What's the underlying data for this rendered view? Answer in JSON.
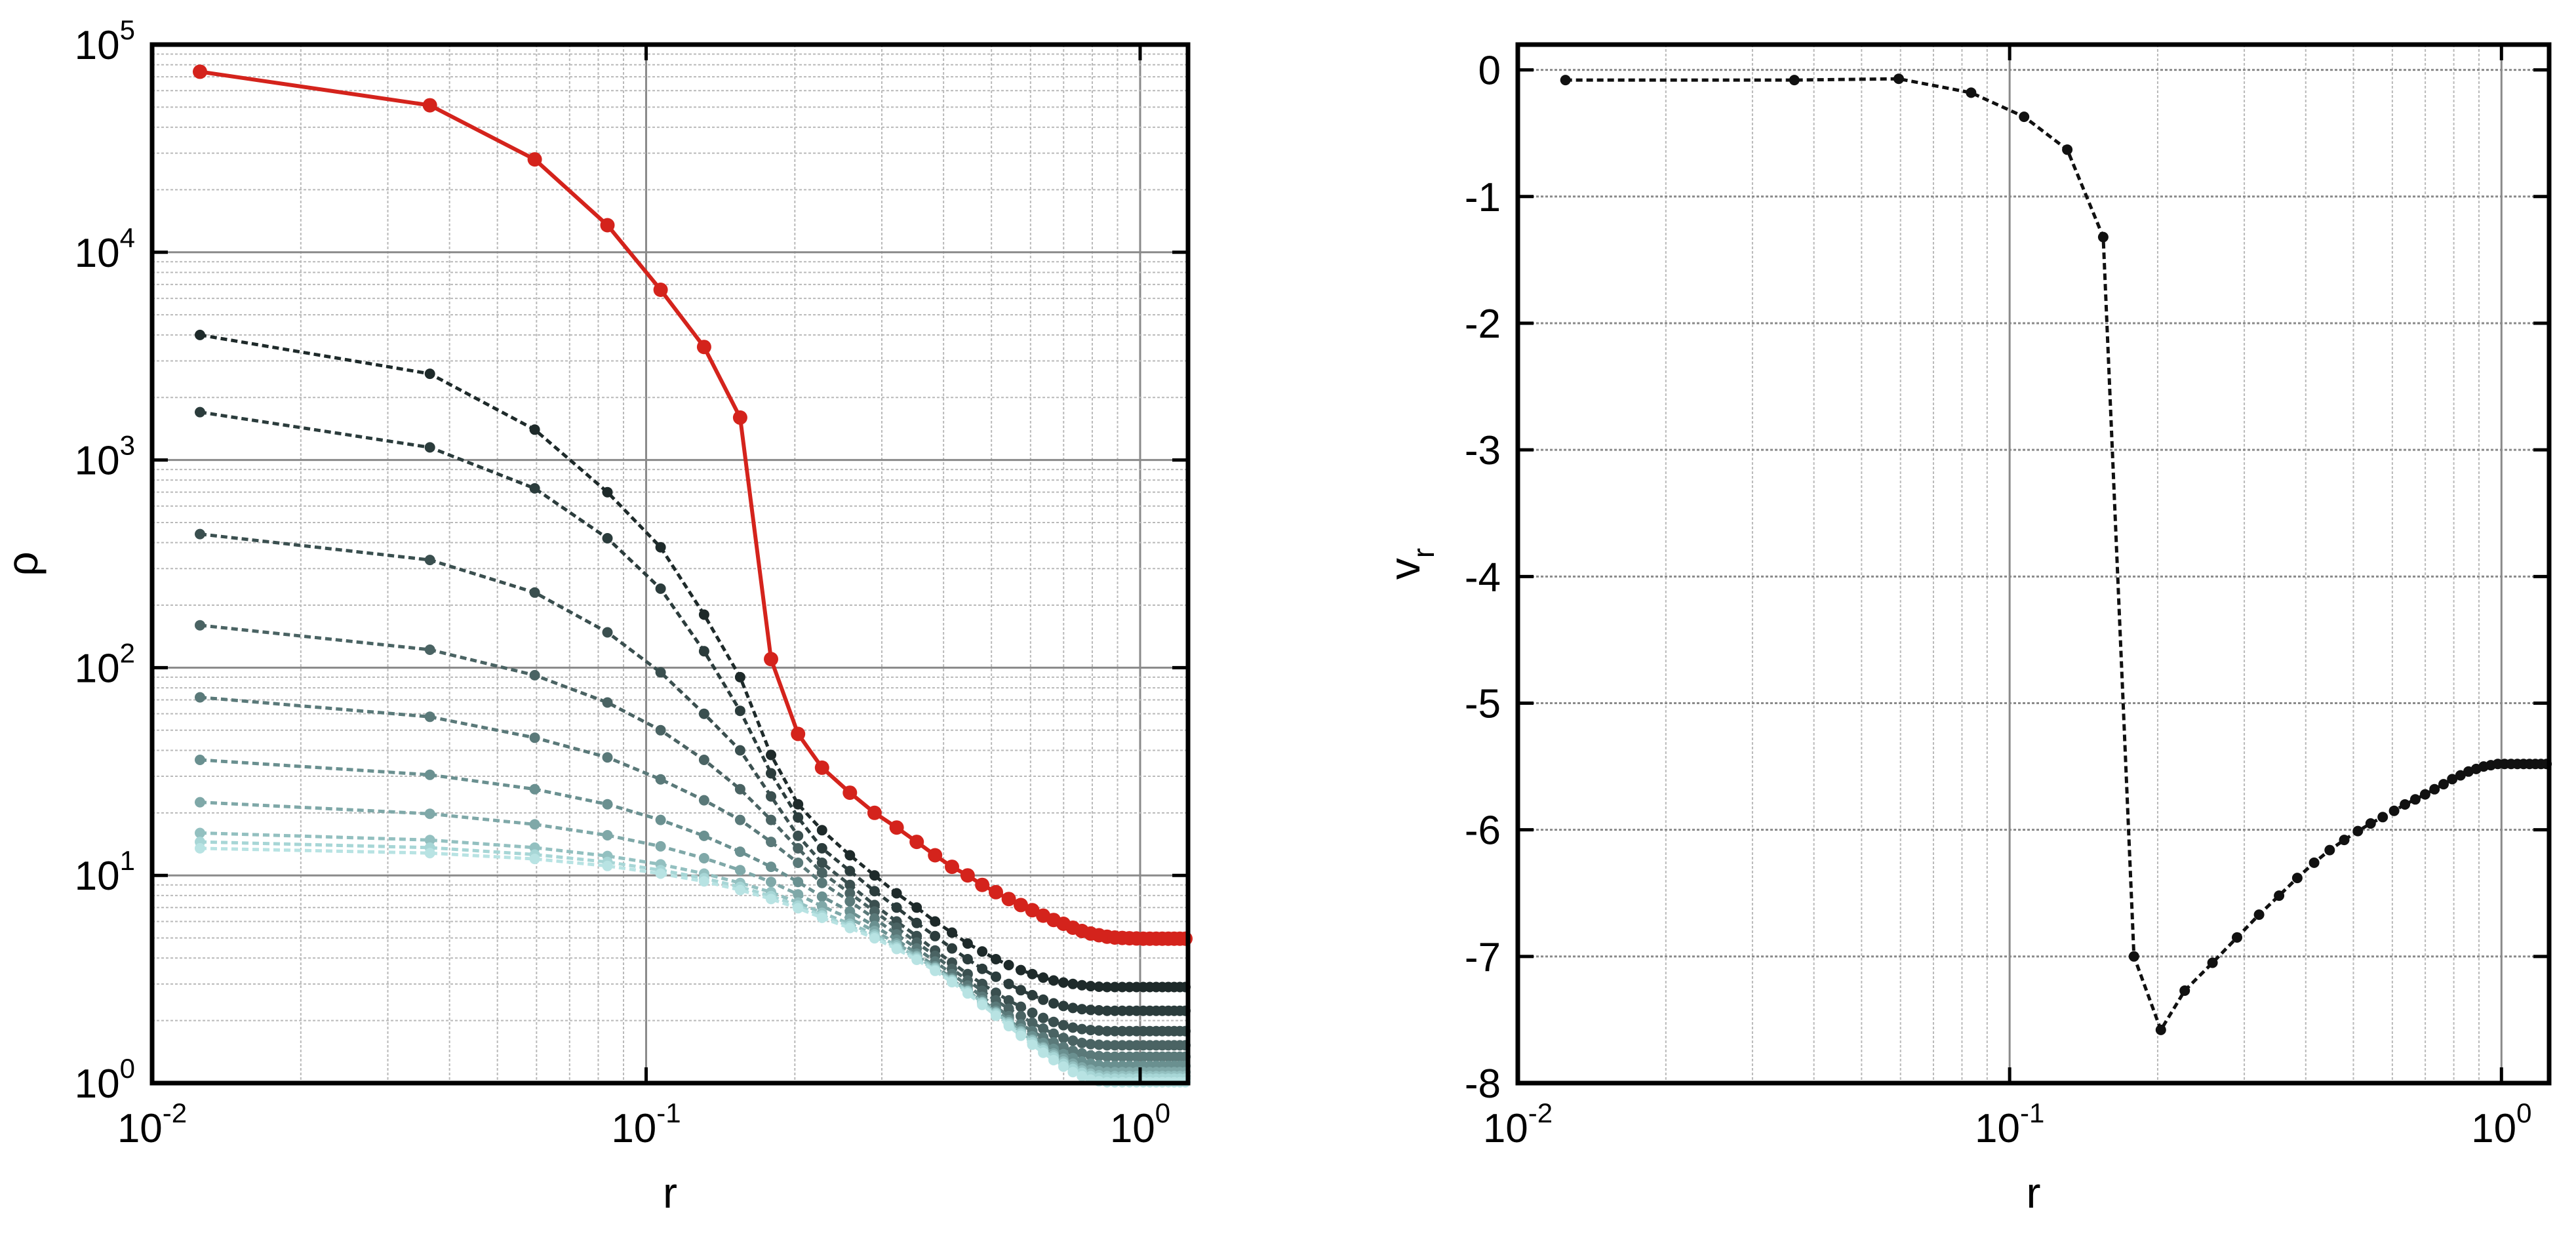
{
  "chart_data": [
    {
      "type": "line",
      "xlabel": "r",
      "ylabel": "ρ",
      "xscale": "log",
      "yscale": "log",
      "xlim": [
        0.01,
        1.25
      ],
      "ylim": [
        1,
        100000
      ],
      "grid": true,
      "xticks": [
        {
          "value": 0.01,
          "base": "10",
          "exp": "-2"
        },
        {
          "value": 0.1,
          "base": "10",
          "exp": "-1"
        },
        {
          "value": 1,
          "base": "10",
          "exp": "0"
        }
      ],
      "yticks": [
        {
          "value": 1,
          "base": "10",
          "exp": "0"
        },
        {
          "value": 10,
          "base": "10",
          "exp": "1"
        },
        {
          "value": 100,
          "base": "10",
          "exp": "2"
        },
        {
          "value": 1000,
          "base": "10",
          "exp": "3"
        },
        {
          "value": 10000,
          "base": "10",
          "exp": "4"
        },
        {
          "value": 100000,
          "base": "10",
          "exp": "5"
        }
      ],
      "highlight_color": "#d4231c",
      "r_inner": [
        0.0125,
        0.0365,
        0.0595,
        0.0835,
        0.107,
        0.131,
        0.155,
        0.179,
        0.203,
        0.227
      ],
      "series": [
        {
          "color": "#d4231c",
          "style": "solid",
          "values": [
            74000,
            51000,
            28000,
            13500,
            6600,
            3500,
            1600,
            110,
            48,
            33,
            25,
            20,
            17,
            14.5,
            12.5,
            11,
            10,
            9,
            8.3,
            7.7,
            7.2,
            6.8,
            6.4,
            6.1,
            5.85,
            5.6,
            5.4,
            5.25,
            5.15,
            5.07,
            5.02,
            5.0,
            4.98,
            4.97,
            4.96,
            4.96,
            4.96,
            4.96,
            4.96,
            4.96,
            4.96,
            4.96
          ]
        },
        {
          "color": "#1e2a2a",
          "style": "dotted",
          "values": [
            4000,
            2600,
            1400,
            700,
            380,
            180,
            90,
            38,
            22,
            16.5,
            12.5,
            10,
            8.2,
            7,
            6,
            5.3,
            4.7,
            4.3,
            3.95,
            3.7,
            3.5,
            3.35,
            3.22,
            3.12,
            3.05,
            3.0,
            2.96,
            2.93,
            2.91,
            2.9,
            2.9,
            2.9,
            2.9,
            2.9,
            2.9,
            2.9,
            2.9,
            2.9,
            2.9,
            2.9,
            2.9,
            2.9
          ]
        },
        {
          "color": "#2b3c3c",
          "style": "dotted",
          "values": [
            1700,
            1150,
            730,
            420,
            240,
            120,
            62,
            31,
            19,
            13.5,
            10.5,
            8.4,
            7,
            5.9,
            5.1,
            4.45,
            3.95,
            3.55,
            3.25,
            3.0,
            2.8,
            2.65,
            2.52,
            2.42,
            2.35,
            2.3,
            2.27,
            2.25,
            2.24,
            2.23,
            2.23,
            2.23,
            2.23,
            2.23,
            2.23,
            2.23,
            2.23,
            2.23,
            2.23,
            2.23,
            2.23,
            2.23
          ]
        },
        {
          "color": "#3a4f4f",
          "style": "dotted",
          "values": [
            440,
            330,
            230,
            148,
            95,
            60,
            40,
            24,
            15.5,
            11.5,
            9,
            7.2,
            6,
            5.1,
            4.35,
            3.8,
            3.35,
            3.0,
            2.72,
            2.5,
            2.33,
            2.18,
            2.06,
            1.97,
            1.9,
            1.85,
            1.82,
            1.8,
            1.79,
            1.78,
            1.78,
            1.78,
            1.78,
            1.78,
            1.78,
            1.78,
            1.78,
            1.78,
            1.78,
            1.78,
            1.78,
            1.78
          ]
        },
        {
          "color": "#4a6363",
          "style": "dotted",
          "values": [
            160,
            122,
            92,
            68,
            50,
            36,
            26,
            18.5,
            13.5,
            10.3,
            8.2,
            6.7,
            5.6,
            4.75,
            4.1,
            3.55,
            3.12,
            2.78,
            2.5,
            2.28,
            2.1,
            1.95,
            1.83,
            1.73,
            1.65,
            1.6,
            1.56,
            1.54,
            1.53,
            1.52,
            1.52,
            1.52,
            1.52,
            1.52,
            1.52,
            1.52,
            1.52,
            1.52,
            1.52,
            1.52,
            1.52,
            1.52
          ]
        },
        {
          "color": "#5a7979",
          "style": "dotted",
          "values": [
            72,
            58,
            46,
            37,
            29,
            23,
            18.5,
            14.5,
            11.5,
            9.2,
            7.5,
            6.2,
            5.2,
            4.45,
            3.85,
            3.35,
            2.95,
            2.6,
            2.33,
            2.1,
            1.92,
            1.78,
            1.66,
            1.57,
            1.49,
            1.43,
            1.39,
            1.36,
            1.35,
            1.34,
            1.34,
            1.34,
            1.34,
            1.34,
            1.34,
            1.34,
            1.34,
            1.34,
            1.34,
            1.34,
            1.34,
            1.34
          ]
        },
        {
          "color": "#6a9090",
          "style": "dotted",
          "values": [
            36,
            30.5,
            26,
            22,
            18.5,
            15.5,
            13,
            11,
            9.3,
            7.9,
            6.7,
            5.7,
            4.9,
            4.2,
            3.65,
            3.2,
            2.82,
            2.5,
            2.23,
            2.01,
            1.83,
            1.68,
            1.56,
            1.46,
            1.38,
            1.32,
            1.27,
            1.24,
            1.22,
            1.21,
            1.21,
            1.21,
            1.21,
            1.21,
            1.21,
            1.21,
            1.21,
            1.21,
            1.21,
            1.21,
            1.21,
            1.21
          ]
        },
        {
          "color": "#7fa8a8",
          "style": "dotted",
          "values": [
            22.5,
            19.8,
            17.6,
            15.6,
            13.8,
            12.1,
            10.6,
            9.3,
            8.1,
            7.1,
            6.2,
            5.4,
            4.7,
            4.1,
            3.6,
            3.15,
            2.78,
            2.46,
            2.19,
            1.97,
            1.78,
            1.62,
            1.49,
            1.39,
            1.31,
            1.24,
            1.19,
            1.16,
            1.14,
            1.13,
            1.13,
            1.13,
            1.13,
            1.13,
            1.13,
            1.13,
            1.13,
            1.13,
            1.13,
            1.13,
            1.13,
            1.13
          ]
        },
        {
          "color": "#93c0c0",
          "style": "dotted",
          "values": [
            16,
            14.8,
            13.6,
            12.4,
            11.3,
            10.2,
            9.2,
            8.3,
            7.4,
            6.6,
            5.85,
            5.2,
            4.6,
            4.05,
            3.57,
            3.14,
            2.77,
            2.45,
            2.18,
            1.95,
            1.76,
            1.6,
            1.47,
            1.36,
            1.27,
            1.2,
            1.15,
            1.11,
            1.09,
            1.08,
            1.08,
            1.08,
            1.08,
            1.08,
            1.08,
            1.08,
            1.08,
            1.08,
            1.08,
            1.08,
            1.08,
            1.08
          ]
        },
        {
          "color": "#a7d6d6",
          "style": "dotted",
          "values": [
            14.5,
            13.6,
            12.6,
            11.6,
            10.6,
            9.7,
            8.8,
            7.95,
            7.15,
            6.4,
            5.7,
            5.08,
            4.5,
            3.98,
            3.52,
            3.1,
            2.74,
            2.42,
            2.15,
            1.92,
            1.73,
            1.57,
            1.44,
            1.33,
            1.24,
            1.17,
            1.12,
            1.08,
            1.06,
            1.05,
            1.05,
            1.05,
            1.05,
            1.05,
            1.05,
            1.05,
            1.05,
            1.05,
            1.05,
            1.05,
            1.05,
            1.05
          ]
        },
        {
          "color": "#b8e3e3",
          "style": "dotted",
          "values": [
            13.5,
            12.8,
            12,
            11.1,
            10.2,
            9.35,
            8.5,
            7.7,
            6.95,
            6.25,
            5.58,
            4.98,
            4.42,
            3.92,
            3.47,
            3.06,
            2.7,
            2.38,
            2.11,
            1.88,
            1.69,
            1.53,
            1.4,
            1.29,
            1.2,
            1.13,
            1.08,
            1.04,
            1.02,
            1.01,
            1.01,
            1.01,
            1.01,
            1.01,
            1.01,
            1.01,
            1.01,
            1.01,
            1.01,
            1.01,
            1.01,
            1.01
          ]
        }
      ]
    },
    {
      "type": "line",
      "xlabel": "r",
      "ylabel": "v",
      "ylabel_sub": "r",
      "xscale": "log",
      "yscale": "linear",
      "xlim": [
        0.01,
        1.25
      ],
      "ylim": [
        -8,
        0.2
      ],
      "grid": true,
      "xticks": [
        {
          "value": 0.01,
          "base": "10",
          "exp": "-2"
        },
        {
          "value": 0.1,
          "base": "10",
          "exp": "-1"
        },
        {
          "value": 1,
          "base": "10",
          "exp": "0"
        }
      ],
      "yticks": [
        0,
        -1,
        -2,
        -3,
        -4,
        -5,
        -6,
        -7,
        -8
      ],
      "series": [
        {
          "color": "#111111",
          "style": "dotted",
          "values": [
            -0.08,
            -0.08,
            -0.07,
            -0.18,
            -0.37,
            -0.63,
            -1.32,
            -7.0,
            -7.58,
            -7.27,
            -7.05,
            -6.85,
            -6.67,
            -6.52,
            -6.38,
            -6.26,
            -6.16,
            -6.08,
            -6.01,
            -5.95,
            -5.9,
            -5.85,
            -5.8,
            -5.76,
            -5.72,
            -5.68,
            -5.64,
            -5.6,
            -5.57,
            -5.54,
            -5.52,
            -5.5,
            -5.49,
            -5.48,
            -5.48,
            -5.48,
            -5.48,
            -5.48,
            -5.48,
            -5.48,
            -5.48,
            -5.48
          ]
        }
      ]
    }
  ]
}
